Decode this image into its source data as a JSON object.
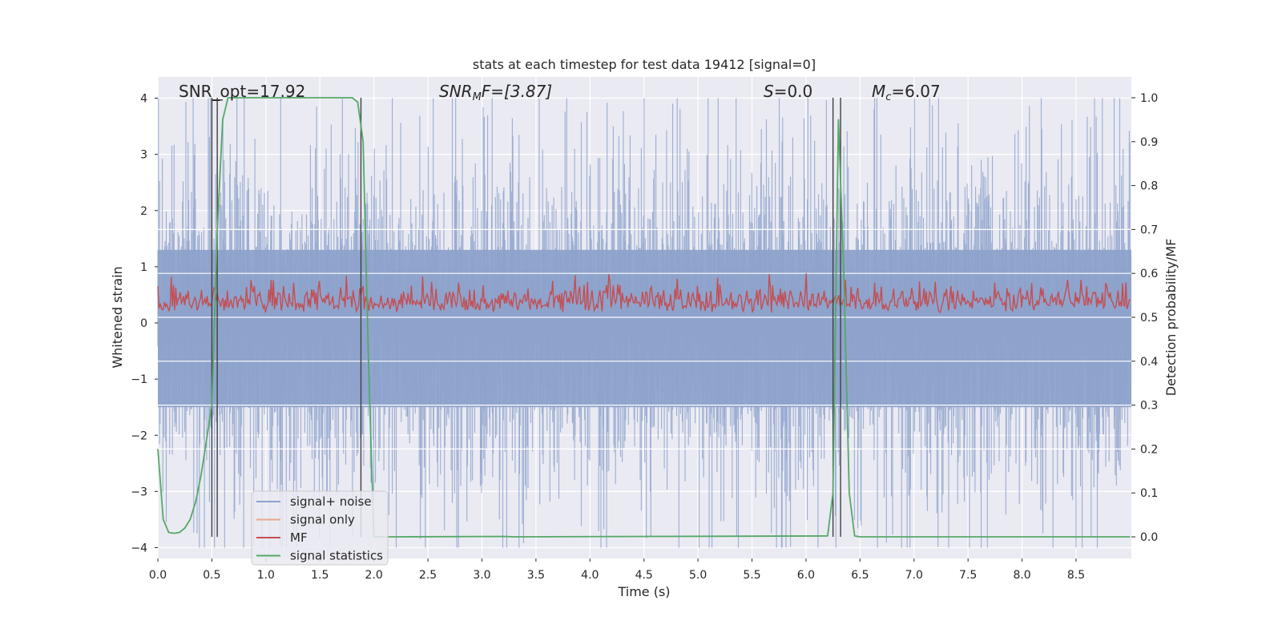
{
  "chart_data": {
    "type": "line",
    "title": "stats at each timestep for test data 19412 [signal=0]",
    "xlabel": "Time (s)",
    "ylabel_left": "Whitened strain",
    "ylabel_right": "Detection probability/MF",
    "xlim": [
      0.0,
      9.0
    ],
    "ylim_left": [
      -4.2,
      4.4
    ],
    "ylim_right": [
      -0.045,
      1.045
    ],
    "x_ticks": [
      "0.0",
      "0.5",
      "1.0",
      "1.5",
      "2.0",
      "2.5",
      "3.0",
      "3.5",
      "4.0",
      "4.5",
      "5.0",
      "5.5",
      "6.0",
      "6.5",
      "7.0",
      "7.5",
      "8.0",
      "8.5"
    ],
    "y_ticks_left": [
      "4",
      "3",
      "2",
      "1",
      "0",
      "−1",
      "−2",
      "−3",
      "−4"
    ],
    "y_ticks_right": [
      "1.0",
      "0.9",
      "0.8",
      "0.7",
      "0.6",
      "0.5",
      "0.4",
      "0.3",
      "0.2",
      "0.1",
      "0.0"
    ],
    "annotations": {
      "snr_opt": "SNR_opt=17.92",
      "snr_mf_main": "SNR",
      "snr_mf_sub": "M",
      "snr_mf_rest": "F=[3.87]",
      "s_var": "S",
      "s_rest": "=0.0",
      "mc_main": "M",
      "mc_sub": "c",
      "mc_rest": "=6.07"
    },
    "legend": {
      "position": "lower-left",
      "entries": [
        {
          "label": "signal+ noise",
          "color": "#8da2cb"
        },
        {
          "label": "signal only",
          "color": "#e9a88a"
        },
        {
          "label": "MF",
          "color": "#c44e52"
        },
        {
          "label": "signal statistics",
          "color": "#55a868"
        }
      ]
    },
    "series": [
      {
        "name": "signal+ noise",
        "axis": "left",
        "color": "#8da2cb",
        "kind": "dense-noise",
        "mean": 0.0,
        "max_abs": 4.0
      },
      {
        "name": "signal only",
        "axis": "left",
        "color": "#e9a88a",
        "kind": "flat",
        "values": []
      },
      {
        "name": "MF",
        "axis": "right",
        "color": "#c44e52",
        "kind": "dense-noise",
        "range": [
          0.5,
          0.6
        ]
      },
      {
        "name": "signal statistics",
        "axis": "right",
        "color": "#55a868",
        "x": [
          0.0,
          0.05,
          0.1,
          0.15,
          0.2,
          0.25,
          0.3,
          0.35,
          0.4,
          0.45,
          0.5,
          0.55,
          0.6,
          0.65,
          1.8,
          1.85,
          1.9,
          1.95,
          2.0,
          2.1,
          2.2,
          3.2,
          3.3,
          6.2,
          6.25,
          6.3,
          6.35,
          6.4,
          6.45,
          6.5,
          9.0
        ],
        "values": [
          0.2,
          0.04,
          0.01,
          0.008,
          0.01,
          0.02,
          0.04,
          0.08,
          0.14,
          0.22,
          0.3,
          0.7,
          0.95,
          1.0,
          1.0,
          0.99,
          0.9,
          0.4,
          0.0,
          0.0,
          0.0,
          0.001,
          0.0,
          0.002,
          0.1,
          0.95,
          0.6,
          0.1,
          0.002,
          0.0,
          0.0
        ]
      }
    ],
    "vertical_markers_x": [
      0.5,
      0.55,
      1.88,
      6.25,
      6.32
    ],
    "colors": {
      "background": "#eaeaf2",
      "grid": "#ffffff",
      "marker": "#404040"
    }
  }
}
